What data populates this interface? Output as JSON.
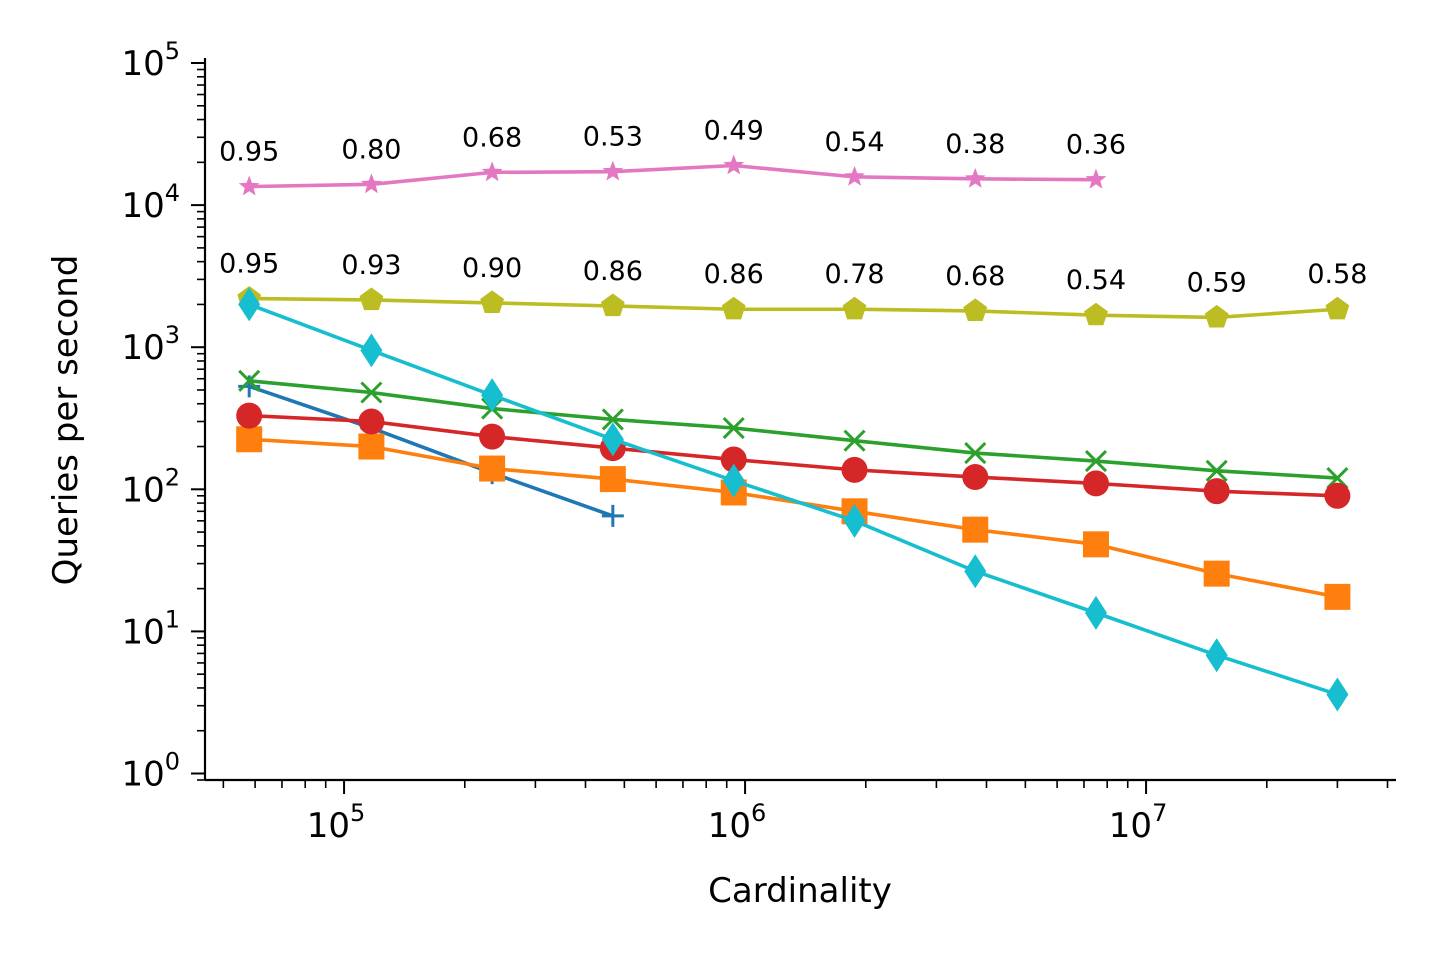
{
  "chart_data": {
    "type": "line",
    "title": "",
    "xlabel": "Cardinality",
    "ylabel": "Queries per second",
    "xscale": "log",
    "yscale": "log",
    "xlim": [
      45000,
      42000000
    ],
    "ylim": [
      0.9,
      105000
    ],
    "grid": false,
    "legend": "none",
    "x_ticks": [
      {
        "value": 100000,
        "base": "10",
        "exp": "5"
      },
      {
        "value": 1000000,
        "base": "10",
        "exp": "6"
      },
      {
        "value": 10000000,
        "base": "10",
        "exp": "7"
      }
    ],
    "y_ticks": [
      {
        "value": 1,
        "base": "10",
        "exp": "0"
      },
      {
        "value": 10,
        "base": "10",
        "exp": "1"
      },
      {
        "value": 100,
        "base": "10",
        "exp": "2"
      },
      {
        "value": 1000,
        "base": "10",
        "exp": "3"
      },
      {
        "value": 10000,
        "base": "10",
        "exp": "4"
      },
      {
        "value": 100000,
        "base": "10",
        "exp": "5"
      }
    ],
    "series": [
      {
        "color": "#1f77b4",
        "marker": "plus",
        "x": [
          58000,
          117000,
          234000,
          468000
        ],
        "y": [
          530,
          270,
          130,
          65
        ]
      },
      {
        "color": "#ff7f0e",
        "marker": "square",
        "x": [
          58000,
          117000,
          234000,
          468000,
          937000,
          1875000,
          3750000,
          7500000,
          15000000,
          30000000
        ],
        "y": [
          225,
          200,
          140,
          118,
          95,
          70,
          52,
          41,
          25.5,
          17.5
        ]
      },
      {
        "color": "#2ca02c",
        "marker": "x",
        "x": [
          58000,
          117000,
          234000,
          468000,
          937000,
          1875000,
          3750000,
          7500000,
          15000000,
          30000000
        ],
        "y": [
          580,
          480,
          370,
          310,
          270,
          220,
          180,
          158,
          135,
          120
        ]
      },
      {
        "color": "#d62728",
        "marker": "circle",
        "x": [
          58000,
          117000,
          234000,
          468000,
          937000,
          1875000,
          3750000,
          7500000,
          15000000,
          30000000
        ],
        "y": [
          330,
          300,
          235,
          195,
          162,
          137,
          122,
          110,
          97,
          90
        ]
      },
      {
        "color": "#e377c2",
        "marker": "star",
        "x": [
          58000,
          117000,
          234000,
          468000,
          937000,
          1875000,
          3750000,
          7500000
        ],
        "y": [
          13500,
          14000,
          17000,
          17200,
          19000,
          15800,
          15300,
          15100
        ],
        "annotations": [
          "0.95",
          "0.80",
          "0.68",
          "0.53",
          "0.49",
          "0.54",
          "0.38",
          "0.36"
        ]
      },
      {
        "color": "#bcbd22",
        "marker": "pentagon",
        "x": [
          58000,
          117000,
          234000,
          468000,
          937000,
          1875000,
          3750000,
          7500000,
          15000000,
          30000000
        ],
        "y": [
          2200,
          2150,
          2050,
          1950,
          1850,
          1850,
          1800,
          1680,
          1620,
          1850
        ],
        "annotations": [
          "0.95",
          "0.93",
          "0.90",
          "0.86",
          "0.86",
          "0.78",
          "0.68",
          "0.54",
          "0.59",
          "0.58"
        ]
      },
      {
        "color": "#17becf",
        "marker": "thin_diamond",
        "x": [
          58000,
          117000,
          234000,
          468000,
          937000,
          1875000,
          3750000,
          7500000,
          15000000,
          30000000
        ],
        "y": [
          2000,
          950,
          460,
          225,
          115,
          60,
          26.5,
          13.5,
          6.8,
          3.6
        ]
      }
    ]
  }
}
